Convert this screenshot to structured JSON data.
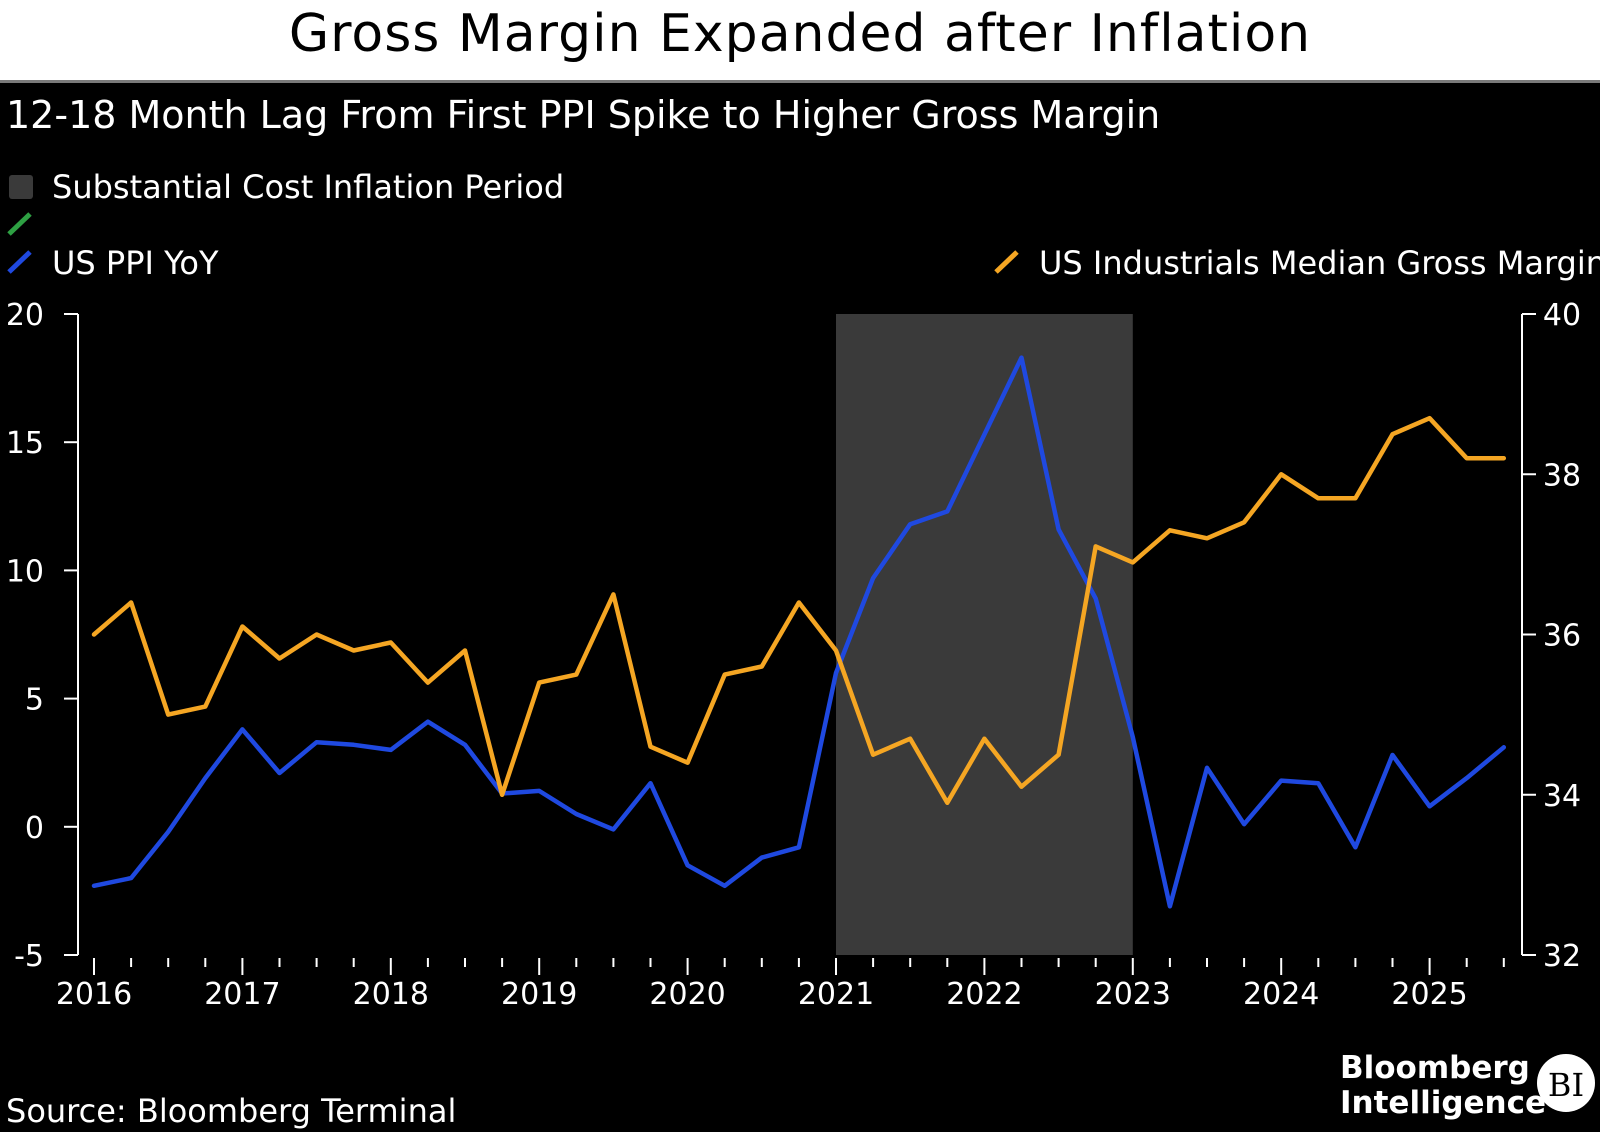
{
  "title": "Gross Margin Expanded after Inflation",
  "subtitle": "12-18 Month Lag From First PPI Spike to Higher Gross Margin",
  "source": "Source: Bloomberg Terminal",
  "brand": {
    "line1": "Bloomberg",
    "line2": "Intelligence",
    "badge": "BI"
  },
  "legend": {
    "shade_label": "Substantial Cost Inflation Period",
    "ppi_label": "US PPI YoY",
    "margin_label": "US Industrials Median Gross Margin"
  },
  "colors": {
    "background": "#000000",
    "ppi": "#1f49e0",
    "margin": "#f5a623",
    "shade": "#3a3a3a",
    "green_marker": "#2ea043",
    "text": "#ffffff"
  },
  "chart_data": {
    "type": "line",
    "xlabel": "",
    "ylabel_left": "",
    "ylabel_right": "",
    "x_ticks": [
      "2016",
      "2017",
      "2018",
      "2019",
      "2020",
      "2021",
      "2022",
      "2023",
      "2024",
      "2025"
    ],
    "y_left_ticks": [
      20,
      15,
      10,
      5,
      0,
      -5
    ],
    "y_right_ticks": [
      40,
      38,
      36,
      34,
      32
    ],
    "ylim_left": [
      -5,
      20
    ],
    "ylim_right": [
      32,
      40
    ],
    "xlim": [
      2016,
      2025.55
    ],
    "shaded_periods": [
      {
        "name": "Substantial Cost Inflation Period",
        "start": 2021,
        "end": 2023
      }
    ],
    "series": [
      {
        "name": "US PPI YoY",
        "axis": "left",
        "points": [
          [
            2016.0,
            -2.3
          ],
          [
            2016.25,
            -2.0
          ],
          [
            2016.5,
            -0.2
          ],
          [
            2016.75,
            1.9
          ],
          [
            2017.0,
            3.8
          ],
          [
            2017.25,
            2.1
          ],
          [
            2017.5,
            3.3
          ],
          [
            2017.75,
            3.2
          ],
          [
            2018.0,
            3.0
          ],
          [
            2018.25,
            4.1
          ],
          [
            2018.5,
            3.2
          ],
          [
            2018.75,
            1.3
          ],
          [
            2019.0,
            1.4
          ],
          [
            2019.25,
            0.5
          ],
          [
            2019.5,
            -0.1
          ],
          [
            2019.75,
            1.7
          ],
          [
            2020.0,
            -1.5
          ],
          [
            2020.25,
            -2.3
          ],
          [
            2020.5,
            -1.2
          ],
          [
            2020.75,
            -0.8
          ],
          [
            2021.0,
            6.0
          ],
          [
            2021.25,
            9.7
          ],
          [
            2021.5,
            11.8
          ],
          [
            2021.75,
            12.3
          ],
          [
            2022.0,
            15.3
          ],
          [
            2022.25,
            18.3
          ],
          [
            2022.5,
            11.6
          ],
          [
            2022.75,
            8.9
          ],
          [
            2023.0,
            3.5
          ],
          [
            2023.25,
            -3.1
          ],
          [
            2023.5,
            2.3
          ],
          [
            2023.75,
            0.1
          ],
          [
            2024.0,
            1.8
          ],
          [
            2024.25,
            1.7
          ],
          [
            2024.5,
            -0.8
          ],
          [
            2024.75,
            2.8
          ],
          [
            2025.0,
            0.8
          ],
          [
            2025.25,
            1.9
          ],
          [
            2025.5,
            3.1
          ]
        ]
      },
      {
        "name": "US Industrials Median Gross Margin",
        "axis": "right",
        "points": [
          [
            2016.0,
            36.0
          ],
          [
            2016.25,
            36.4
          ],
          [
            2016.5,
            35.0
          ],
          [
            2016.75,
            35.1
          ],
          [
            2017.0,
            36.1
          ],
          [
            2017.25,
            35.7
          ],
          [
            2017.5,
            36.0
          ],
          [
            2017.75,
            35.8
          ],
          [
            2018.0,
            35.9
          ],
          [
            2018.25,
            35.4
          ],
          [
            2018.5,
            35.8
          ],
          [
            2018.75,
            34.0
          ],
          [
            2019.0,
            35.4
          ],
          [
            2019.25,
            35.5
          ],
          [
            2019.5,
            36.5
          ],
          [
            2019.75,
            34.6
          ],
          [
            2020.0,
            34.4
          ],
          [
            2020.25,
            35.5
          ],
          [
            2020.5,
            35.6
          ],
          [
            2020.75,
            36.4
          ],
          [
            2021.0,
            35.8
          ],
          [
            2021.25,
            34.5
          ],
          [
            2021.5,
            34.7
          ],
          [
            2021.75,
            33.9
          ],
          [
            2022.0,
            34.7
          ],
          [
            2022.25,
            34.1
          ],
          [
            2022.5,
            34.5
          ],
          [
            2022.75,
            37.1
          ],
          [
            2023.0,
            36.9
          ],
          [
            2023.25,
            37.3
          ],
          [
            2023.5,
            37.2
          ],
          [
            2023.75,
            37.4
          ],
          [
            2024.0,
            38.0
          ],
          [
            2024.25,
            37.7
          ],
          [
            2024.5,
            37.7
          ],
          [
            2024.75,
            38.5
          ],
          [
            2025.0,
            38.7
          ],
          [
            2025.25,
            38.2
          ],
          [
            2025.5,
            38.2
          ]
        ]
      }
    ]
  }
}
